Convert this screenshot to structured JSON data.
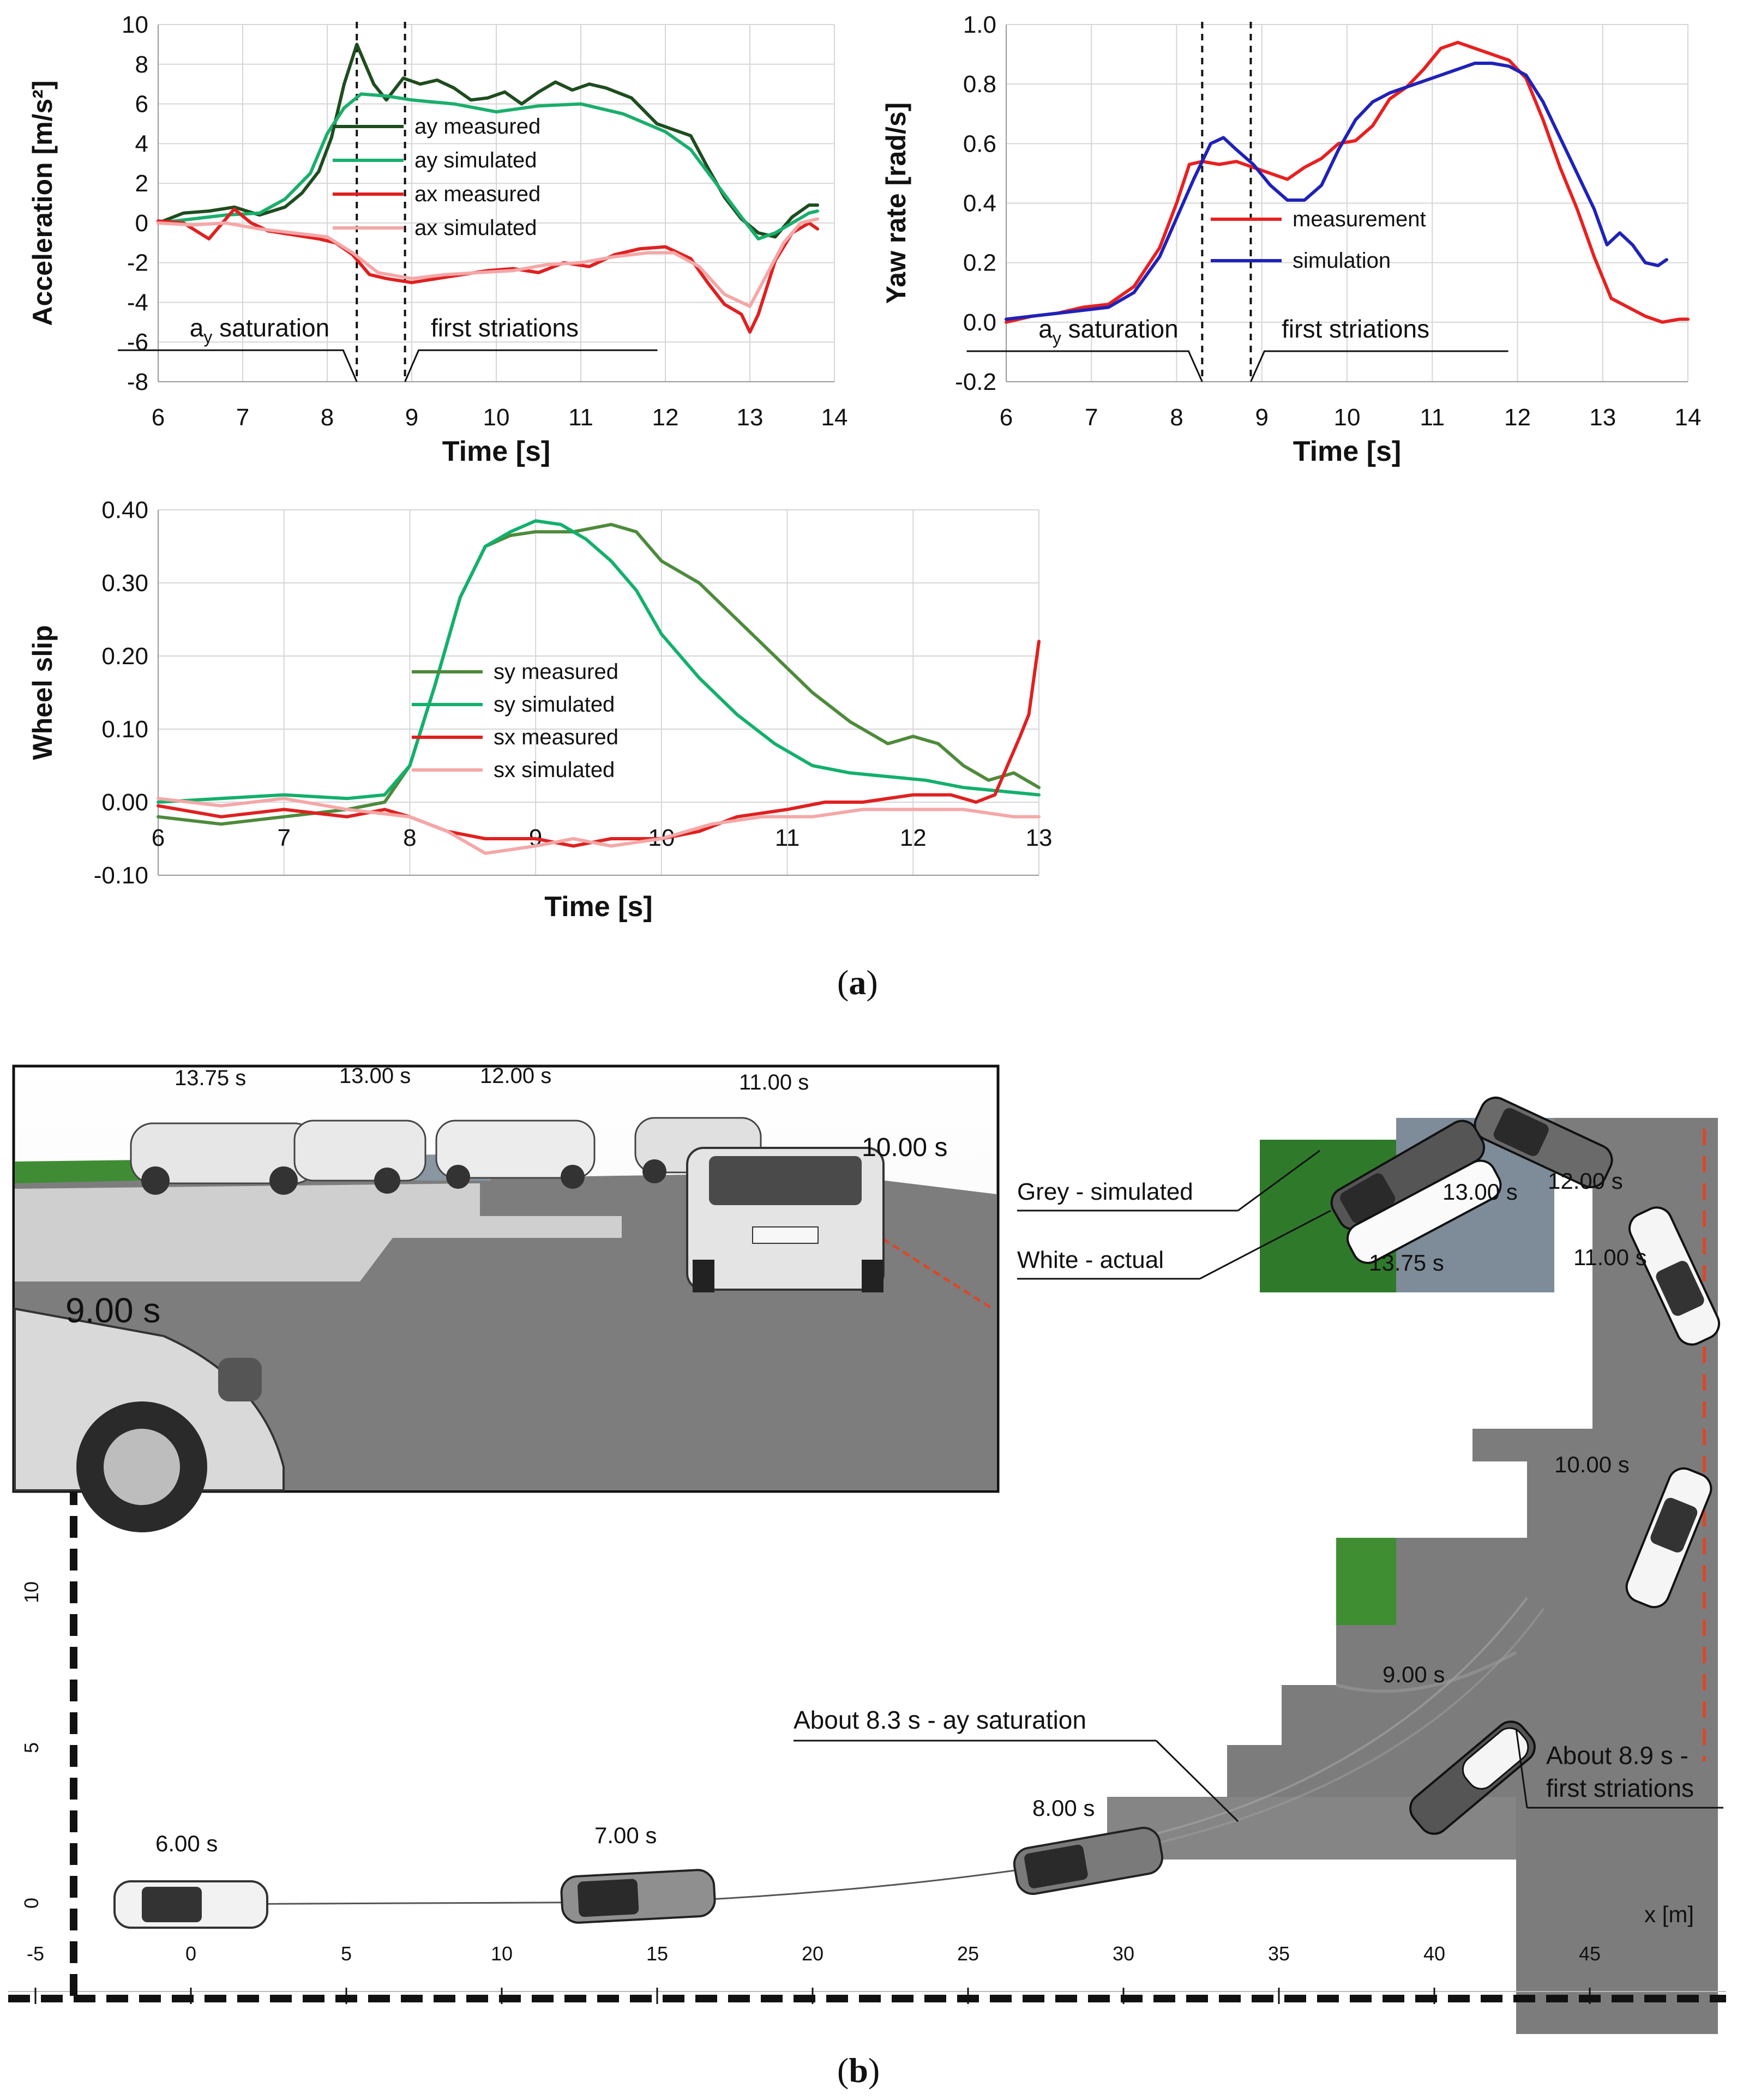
{
  "figure": {
    "panel_a_label": "a",
    "panel_b_label": "b"
  },
  "chart_data": [
    {
      "id": "acceleration",
      "type": "line",
      "xlabel": "Time [s]",
      "ylabel": "Acceleration [m/s²]",
      "xlim": [
        6,
        14
      ],
      "ylim": [
        -8,
        10
      ],
      "xticks": [
        6,
        7,
        8,
        9,
        10,
        11,
        12,
        13,
        14
      ],
      "yticks": [
        -8,
        -6,
        -4,
        -2,
        0,
        2,
        4,
        6,
        8,
        10
      ],
      "grid": true,
      "legend_position": "center-right",
      "vlines": [
        8.35,
        8.92
      ],
      "annotations": [
        {
          "text": "ay saturation",
          "x": 7.2,
          "y": -6.0
        },
        {
          "text": "first striations",
          "x": 10.1,
          "y": -6.0
        }
      ],
      "series": [
        {
          "name": "ay measured",
          "color": "#1e4d1e",
          "x": [
            6.0,
            6.3,
            6.6,
            6.9,
            7.2,
            7.5,
            7.7,
            7.9,
            8.05,
            8.2,
            8.35,
            8.45,
            8.55,
            8.7,
            8.9,
            9.1,
            9.3,
            9.5,
            9.7,
            9.9,
            10.1,
            10.3,
            10.5,
            10.7,
            10.9,
            11.1,
            11.3,
            11.6,
            11.9,
            12.1,
            12.3,
            12.5,
            12.7,
            12.9,
            13.1,
            13.3,
            13.5,
            13.7,
            13.8
          ],
          "y": [
            0.0,
            0.5,
            0.6,
            0.8,
            0.4,
            0.8,
            1.5,
            2.6,
            4.3,
            7.0,
            9.0,
            8.0,
            7.0,
            6.2,
            7.3,
            7.0,
            7.2,
            6.8,
            6.2,
            6.3,
            6.6,
            6.0,
            6.6,
            7.1,
            6.7,
            7.0,
            6.8,
            6.3,
            5.0,
            4.7,
            4.4,
            2.8,
            1.3,
            0.2,
            -0.5,
            -0.7,
            0.3,
            0.9,
            0.9
          ]
        },
        {
          "name": "ay simulated",
          "color": "#1aae6c",
          "x": [
            6.0,
            6.4,
            6.8,
            7.2,
            7.5,
            7.8,
            8.0,
            8.2,
            8.4,
            8.7,
            9.0,
            9.5,
            10.0,
            10.5,
            11.0,
            11.5,
            12.0,
            12.3,
            12.6,
            12.9,
            13.1,
            13.3,
            13.5,
            13.7,
            13.8
          ],
          "y": [
            0.0,
            0.2,
            0.4,
            0.5,
            1.2,
            2.5,
            4.5,
            5.8,
            6.5,
            6.4,
            6.2,
            6.0,
            5.6,
            5.9,
            6.0,
            5.5,
            4.6,
            3.7,
            2.0,
            0.3,
            -0.8,
            -0.5,
            0.0,
            0.5,
            0.6
          ]
        },
        {
          "name": "ax measured",
          "color": "#e02020",
          "x": [
            6.0,
            6.3,
            6.6,
            6.9,
            7.1,
            7.3,
            7.6,
            7.9,
            8.1,
            8.3,
            8.5,
            8.7,
            9.0,
            9.3,
            9.6,
            9.9,
            10.2,
            10.5,
            10.8,
            11.1,
            11.4,
            11.7,
            12.0,
            12.3,
            12.5,
            12.7,
            12.9,
            13.0,
            13.1,
            13.3,
            13.5,
            13.7,
            13.8
          ],
          "y": [
            0.1,
            0.0,
            -0.8,
            0.7,
            0.0,
            -0.4,
            -0.6,
            -0.8,
            -1.0,
            -1.6,
            -2.6,
            -2.8,
            -3.0,
            -2.8,
            -2.6,
            -2.4,
            -2.3,
            -2.5,
            -2.0,
            -2.2,
            -1.6,
            -1.3,
            -1.2,
            -1.8,
            -3.0,
            -4.1,
            -4.6,
            -5.5,
            -4.6,
            -1.9,
            -0.5,
            0.0,
            -0.3
          ]
        },
        {
          "name": "ax simulated",
          "color": "#f5a7a7",
          "x": [
            6.0,
            6.4,
            6.8,
            7.2,
            7.6,
            8.0,
            8.3,
            8.6,
            9.0,
            9.4,
            9.8,
            10.2,
            10.6,
            11.0,
            11.4,
            11.8,
            12.1,
            12.4,
            12.7,
            13.0,
            13.2,
            13.4,
            13.6,
            13.8
          ],
          "y": [
            0.0,
            -0.1,
            0.0,
            -0.3,
            -0.5,
            -0.7,
            -1.5,
            -2.5,
            -2.8,
            -2.6,
            -2.5,
            -2.4,
            -2.1,
            -2.0,
            -1.7,
            -1.5,
            -1.5,
            -2.2,
            -3.6,
            -4.2,
            -2.6,
            -1.0,
            0.0,
            0.2
          ]
        }
      ]
    },
    {
      "id": "yaw_rate",
      "type": "line",
      "xlabel": "Time [s]",
      "ylabel": "Yaw rate [rad/s]",
      "xlim": [
        6,
        14
      ],
      "ylim": [
        -0.2,
        1.0
      ],
      "xticks": [
        6,
        7,
        8,
        9,
        10,
        11,
        12,
        13,
        14
      ],
      "yticks": [
        -0.2,
        0.0,
        0.2,
        0.4,
        0.6,
        0.8,
        1.0
      ],
      "grid": true,
      "legend_position": "center-right",
      "vlines": [
        8.3,
        8.87
      ],
      "annotations": [
        {
          "text": "ay saturation",
          "x": 7.2,
          "y": -0.07
        },
        {
          "text": "first striations",
          "x": 10.1,
          "y": -0.07
        }
      ],
      "series": [
        {
          "name": "measurement",
          "color": "#e82020",
          "x": [
            6.0,
            6.3,
            6.6,
            6.9,
            7.2,
            7.5,
            7.8,
            8.0,
            8.15,
            8.3,
            8.5,
            8.7,
            8.9,
            9.1,
            9.3,
            9.5,
            9.7,
            9.9,
            10.1,
            10.3,
            10.5,
            10.7,
            10.9,
            11.1,
            11.3,
            11.5,
            11.7,
            11.9,
            12.1,
            12.3,
            12.5,
            12.7,
            12.9,
            13.1,
            13.3,
            13.5,
            13.7,
            13.9,
            14.0
          ],
          "y": [
            0.0,
            0.02,
            0.03,
            0.05,
            0.06,
            0.12,
            0.25,
            0.4,
            0.53,
            0.54,
            0.53,
            0.54,
            0.52,
            0.5,
            0.48,
            0.52,
            0.55,
            0.6,
            0.61,
            0.66,
            0.75,
            0.79,
            0.85,
            0.92,
            0.94,
            0.92,
            0.9,
            0.88,
            0.82,
            0.68,
            0.52,
            0.38,
            0.22,
            0.08,
            0.05,
            0.02,
            0.0,
            0.01,
            0.01
          ]
        },
        {
          "name": "simulation",
          "color": "#1f22b8",
          "x": [
            6.0,
            6.3,
            6.6,
            6.9,
            7.2,
            7.5,
            7.8,
            8.0,
            8.2,
            8.4,
            8.55,
            8.7,
            8.9,
            9.1,
            9.3,
            9.5,
            9.7,
            9.9,
            10.1,
            10.3,
            10.5,
            10.7,
            10.9,
            11.1,
            11.3,
            11.5,
            11.7,
            11.9,
            12.1,
            12.3,
            12.5,
            12.7,
            12.9,
            13.05,
            13.2,
            13.35,
            13.5,
            13.65,
            13.75
          ],
          "y": [
            0.01,
            0.02,
            0.03,
            0.04,
            0.05,
            0.1,
            0.22,
            0.35,
            0.48,
            0.6,
            0.62,
            0.58,
            0.53,
            0.46,
            0.41,
            0.41,
            0.46,
            0.58,
            0.68,
            0.74,
            0.77,
            0.79,
            0.81,
            0.83,
            0.85,
            0.87,
            0.87,
            0.86,
            0.83,
            0.74,
            0.62,
            0.5,
            0.38,
            0.26,
            0.3,
            0.26,
            0.2,
            0.19,
            0.21
          ]
        }
      ]
    },
    {
      "id": "wheel_slip",
      "type": "line",
      "xlabel": "Time [s]",
      "ylabel": "Wheel slip",
      "xlim": [
        6,
        13
      ],
      "ylim": [
        -0.1,
        0.4
      ],
      "xticks": [
        6,
        7,
        8,
        9,
        10,
        11,
        12,
        13
      ],
      "yticks": [
        -0.1,
        0.0,
        0.1,
        0.2,
        0.3,
        0.4
      ],
      "ytick_labels": [
        "-0.10",
        "0.00",
        "0.10",
        "0.20",
        "0.30",
        "0.40"
      ],
      "grid": true,
      "legend_position": "center",
      "series": [
        {
          "name": "sy measured",
          "color": "#4e8a3c",
          "x": [
            6.0,
            6.5,
            7.0,
            7.5,
            7.8,
            8.0,
            8.2,
            8.4,
            8.6,
            8.8,
            9.0,
            9.3,
            9.6,
            9.8,
            10.0,
            10.3,
            10.6,
            10.9,
            11.2,
            11.5,
            11.8,
            12.0,
            12.2,
            12.4,
            12.6,
            12.8,
            13.0
          ],
          "y": [
            -0.02,
            -0.03,
            -0.02,
            -0.01,
            0.0,
            0.05,
            0.16,
            0.28,
            0.35,
            0.365,
            0.37,
            0.37,
            0.38,
            0.37,
            0.33,
            0.3,
            0.25,
            0.2,
            0.15,
            0.11,
            0.08,
            0.09,
            0.08,
            0.05,
            0.03,
            0.04,
            0.02
          ]
        },
        {
          "name": "sy simulated",
          "color": "#12b06c",
          "x": [
            6.0,
            6.5,
            7.0,
            7.5,
            7.8,
            8.0,
            8.2,
            8.4,
            8.6,
            8.8,
            9.0,
            9.2,
            9.4,
            9.6,
            9.8,
            10.0,
            10.3,
            10.6,
            10.9,
            11.2,
            11.5,
            11.8,
            12.1,
            12.4,
            12.7,
            13.0
          ],
          "y": [
            0.0,
            0.005,
            0.01,
            0.005,
            0.01,
            0.05,
            0.16,
            0.28,
            0.35,
            0.37,
            0.385,
            0.38,
            0.36,
            0.33,
            0.29,
            0.23,
            0.17,
            0.12,
            0.08,
            0.05,
            0.04,
            0.035,
            0.03,
            0.02,
            0.015,
            0.01
          ]
        },
        {
          "name": "sx measured",
          "color": "#e02020",
          "x": [
            6.0,
            6.5,
            7.0,
            7.5,
            7.8,
            8.0,
            8.3,
            8.6,
            9.0,
            9.3,
            9.6,
            10.0,
            10.3,
            10.6,
            11.0,
            11.3,
            11.6,
            12.0,
            12.3,
            12.5,
            12.65,
            12.75,
            12.85,
            12.92,
            13.0
          ],
          "y": [
            -0.005,
            -0.02,
            -0.01,
            -0.02,
            -0.01,
            -0.02,
            -0.04,
            -0.05,
            -0.05,
            -0.06,
            -0.05,
            -0.05,
            -0.04,
            -0.02,
            -0.01,
            0.0,
            0.0,
            0.01,
            0.01,
            0.0,
            0.01,
            0.05,
            0.09,
            0.12,
            0.22
          ]
        },
        {
          "name": "sx simulated",
          "color": "#f5a7a7",
          "x": [
            6.0,
            6.5,
            7.0,
            7.5,
            8.0,
            8.3,
            8.6,
            9.0,
            9.3,
            9.6,
            10.0,
            10.4,
            10.8,
            11.2,
            11.6,
            12.0,
            12.4,
            12.8,
            13.0
          ],
          "y": [
            0.005,
            -0.005,
            0.005,
            -0.01,
            -0.02,
            -0.04,
            -0.07,
            -0.06,
            -0.05,
            -0.06,
            -0.05,
            -0.03,
            -0.02,
            -0.02,
            -0.01,
            -0.01,
            -0.01,
            -0.02,
            -0.02
          ]
        }
      ]
    }
  ],
  "scene": {
    "inset_labels": [
      "13.75 s",
      "13.00 s",
      "12.00 s",
      "11.00 s",
      "10.00 s",
      "9.00 s"
    ],
    "aerial_labels": [
      "13.00 s",
      "12.00 s",
      "13.75 s",
      "11.00 s",
      "10.00 s",
      "9.00 s",
      "8.00 s",
      "7.00 s",
      "6.00 s"
    ],
    "callouts": {
      "grey": "Grey - simulated",
      "white": "White - actual",
      "saturation": "About 8.3 s - ay saturation",
      "striations_1": "About 8.9 s -",
      "striations_2": "first striations"
    },
    "axis": {
      "x_label": "x [m]",
      "x_ticks": [
        "-5",
        "0",
        "5",
        "10",
        "15",
        "20",
        "25",
        "30",
        "35",
        "40",
        "45"
      ],
      "y_ticks": [
        "0",
        "5",
        "10"
      ]
    }
  }
}
